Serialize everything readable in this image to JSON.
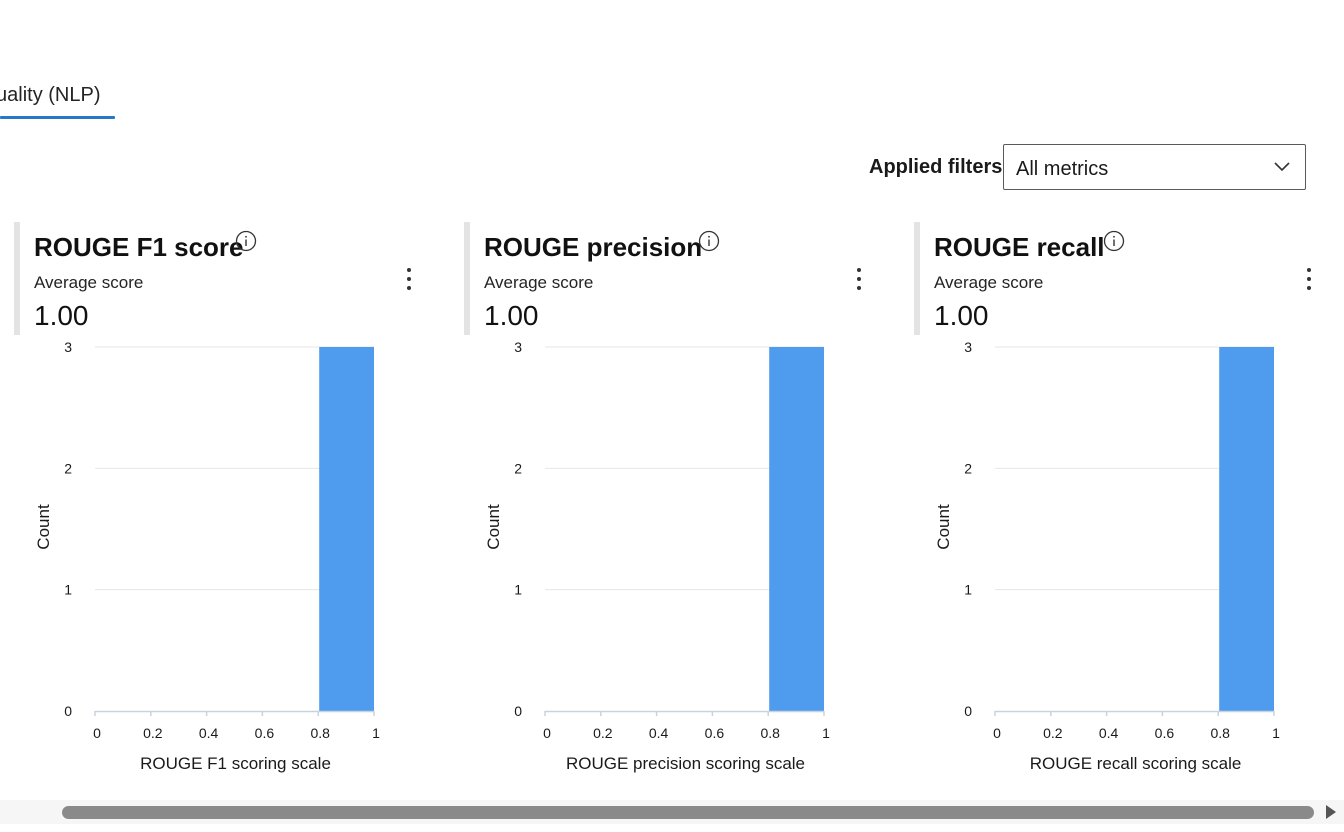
{
  "tab": {
    "label": "uality (NLP)"
  },
  "filter": {
    "label": "Applied filters",
    "value": "All metrics"
  },
  "colors": {
    "bar": "#4f9bee",
    "grid": "#e6e6e6",
    "axis": "#c8d3e0",
    "tab_accent": "#2878c8"
  },
  "cards": [
    {
      "title": "ROUGE F1 score",
      "subtitle": "Average score",
      "value": "1.00"
    },
    {
      "title": "ROUGE precision",
      "subtitle": "Average score",
      "value": "1.00"
    },
    {
      "title": "ROUGE recall",
      "subtitle": "Average score",
      "value": "1.00"
    }
  ],
  "chart_data": [
    {
      "type": "bar",
      "bins": [
        [
          0,
          0.2
        ],
        [
          0.2,
          0.4
        ],
        [
          0.4,
          0.6
        ],
        [
          0.6,
          0.8
        ],
        [
          0.8,
          1
        ]
      ],
      "values": [
        0,
        0,
        0,
        0,
        3
      ],
      "xlabel": "ROUGE F1 scoring scale",
      "ylabel": "Count",
      "xticks": [
        "0",
        "0.2",
        "0.4",
        "0.6",
        "0.8",
        "1"
      ],
      "yticks": [
        "0",
        "1",
        "2",
        "3"
      ],
      "xlim": [
        0,
        1
      ],
      "ylim": [
        0,
        3
      ],
      "grid": true
    },
    {
      "type": "bar",
      "bins": [
        [
          0,
          0.2
        ],
        [
          0.2,
          0.4
        ],
        [
          0.4,
          0.6
        ],
        [
          0.6,
          0.8
        ],
        [
          0.8,
          1
        ]
      ],
      "values": [
        0,
        0,
        0,
        0,
        3
      ],
      "xlabel": "ROUGE precision scoring scale",
      "ylabel": "Count",
      "xticks": [
        "0",
        "0.2",
        "0.4",
        "0.6",
        "0.8",
        "1"
      ],
      "yticks": [
        "0",
        "1",
        "2",
        "3"
      ],
      "xlim": [
        0,
        1
      ],
      "ylim": [
        0,
        3
      ],
      "grid": true
    },
    {
      "type": "bar",
      "bins": [
        [
          0,
          0.2
        ],
        [
          0.2,
          0.4
        ],
        [
          0.4,
          0.6
        ],
        [
          0.6,
          0.8
        ],
        [
          0.8,
          1
        ]
      ],
      "values": [
        0,
        0,
        0,
        0,
        3
      ],
      "xlabel": "ROUGE recall scoring scale",
      "ylabel": "Count",
      "xticks": [
        "0",
        "0.2",
        "0.4",
        "0.6",
        "0.8",
        "1"
      ],
      "yticks": [
        "0",
        "1",
        "2",
        "3"
      ],
      "xlim": [
        0,
        1
      ],
      "ylim": [
        0,
        3
      ],
      "grid": true
    }
  ]
}
